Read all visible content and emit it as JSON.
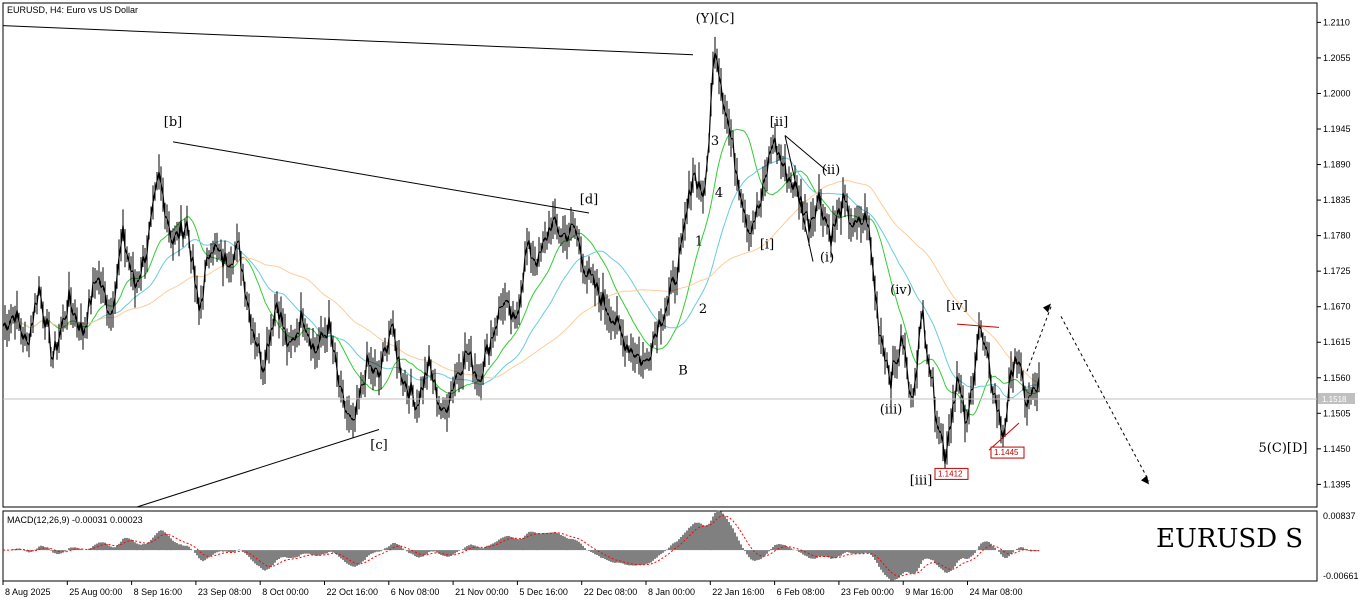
{
  "title": "EURUSD, H4:  Euro vs US Dollar",
  "macd_label": "MACD(12,26,9) -0.00031 0.00023",
  "watermark": "EURUSD S",
  "current_price": "1.1518",
  "colors": {
    "price": "#000000",
    "ma_green": "#33cc33",
    "ma_cyan": "#66ccdd",
    "ma_orange": "#ffcc99",
    "macd_hist": "#808080",
    "macd_signal": "#ff0000",
    "level_box": "#c00000"
  },
  "chart_data": [
    {
      "type": "line",
      "name_label": "EURUSD, H4",
      "y_ticks": [
        "1.2110",
        "1.2055",
        "1.2000",
        "1.1945",
        "1.1890",
        "1.1835",
        "1.1780",
        "1.1725",
        "1.1670",
        "1.1615",
        "1.1560",
        "1.1505",
        "1.1450",
        "1.1395"
      ],
      "x_ticks": [
        "8 Aug 2025",
        "25 Aug 00:00",
        "8 Sep 16:00",
        "23 Sep 08:00",
        "8 Oct 00:00",
        "22 Oct 16:00",
        "6 Nov 08:00",
        "21 Nov 00:00",
        "5 Dec 16:00",
        "22 Dec 08:00",
        "8 Jan 00:00",
        "22 Jan 16:00",
        "6 Feb 08:00",
        "23 Feb 00:00",
        "9 Mar 16:00",
        "24 Mar 08:00"
      ],
      "ylim": [
        1.136,
        1.214
      ],
      "price_keypoints": [
        [
          0,
          1.164
        ],
        [
          6,
          1.166
        ],
        [
          12,
          1.161
        ],
        [
          18,
          1.17
        ],
        [
          25,
          1.159
        ],
        [
          33,
          1.168
        ],
        [
          40,
          1.163
        ],
        [
          47,
          1.172
        ],
        [
          54,
          1.166
        ],
        [
          60,
          1.178
        ],
        [
          66,
          1.17
        ],
        [
          72,
          1.176
        ],
        [
          78,
          1.187
        ],
        [
          85,
          1.177
        ],
        [
          92,
          1.18
        ],
        [
          98,
          1.166
        ],
        [
          104,
          1.177
        ],
        [
          110,
          1.174
        ],
        [
          118,
          1.176
        ],
        [
          124,
          1.165
        ],
        [
          130,
          1.158
        ],
        [
          137,
          1.168
        ],
        [
          143,
          1.16
        ],
        [
          150,
          1.166
        ],
        [
          156,
          1.16
        ],
        [
          163,
          1.164
        ],
        [
          169,
          1.153
        ],
        [
          175,
          1.148
        ],
        [
          182,
          1.158
        ],
        [
          188,
          1.156
        ],
        [
          194,
          1.164
        ],
        [
          200,
          1.156
        ],
        [
          207,
          1.152
        ],
        [
          213,
          1.158
        ],
        [
          220,
          1.15
        ],
        [
          226,
          1.156
        ],
        [
          232,
          1.16
        ],
        [
          238,
          1.156
        ],
        [
          244,
          1.162
        ],
        [
          250,
          1.168
        ],
        [
          256,
          1.164
        ],
        [
          262,
          1.176
        ],
        [
          268,
          1.174
        ],
        [
          274,
          1.18
        ],
        [
          280,
          1.178
        ],
        [
          286,
          1.179
        ],
        [
          292,
          1.172
        ],
        [
          298,
          1.169
        ],
        [
          304,
          1.166
        ],
        [
          310,
          1.162
        ],
        [
          316,
          1.16
        ],
        [
          321,
          1.158
        ],
        [
          327,
          1.164
        ],
        [
          333,
          1.168
        ],
        [
          339,
          1.175
        ],
        [
          345,
          1.188
        ],
        [
          351,
          1.184
        ],
        [
          356,
          1.208
        ],
        [
          361,
          1.198
        ],
        [
          367,
          1.188
        ],
        [
          373,
          1.179
        ],
        [
          379,
          1.183
        ],
        [
          385,
          1.193
        ],
        [
          391,
          1.188
        ],
        [
          397,
          1.185
        ],
        [
          403,
          1.18
        ],
        [
          408,
          1.184
        ],
        [
          414,
          1.178
        ],
        [
          420,
          1.183
        ],
        [
          426,
          1.179
        ],
        [
          432,
          1.181
        ],
        [
          438,
          1.164
        ],
        [
          444,
          1.156
        ],
        [
          450,
          1.162
        ],
        [
          454,
          1.152
        ],
        [
          460,
          1.166
        ],
        [
          466,
          1.152
        ],
        [
          471,
          1.144
        ],
        [
          477,
          1.156
        ],
        [
          482,
          1.148
        ],
        [
          488,
          1.164
        ],
        [
          494,
          1.156
        ],
        [
          500,
          1.147
        ],
        [
          506,
          1.16
        ],
        [
          512,
          1.152
        ],
        [
          518,
          1.155
        ]
      ],
      "wave_labels": [
        {
          "text": "(Y)[C]",
          "x": 356,
          "y": 1.211
        },
        {
          "text": "[b]",
          "x": 85,
          "y": 1.195
        },
        {
          "text": "[d]",
          "x": 293,
          "y": 1.183
        },
        {
          "text": "[c]",
          "x": 188,
          "y": 1.145
        },
        {
          "text": "B",
          "x": 340,
          "y": 1.1565
        },
        {
          "text": "1",
          "x": 348,
          "y": 1.1765
        },
        {
          "text": "2",
          "x": 350,
          "y": 1.166
        },
        {
          "text": "3",
          "x": 356,
          "y": 1.192
        },
        {
          "text": "4",
          "x": 358,
          "y": 1.184
        },
        {
          "text": "[ii]",
          "x": 388,
          "y": 1.195
        },
        {
          "text": "[i]",
          "x": 382,
          "y": 1.176
        },
        {
          "text": "(ii)",
          "x": 414,
          "y": 1.1875
        },
        {
          "text": "(i)",
          "x": 412,
          "y": 1.174
        },
        {
          "text": "(iv)",
          "x": 449,
          "y": 1.169
        },
        {
          "text": "[iv]",
          "x": 477,
          "y": 1.1665
        },
        {
          "text": "(iii)",
          "x": 444,
          "y": 1.1505
        },
        {
          "text": "[iii]",
          "x": 459,
          "y": 1.1395
        },
        {
          "text": "5(C)[D]",
          "x": 640,
          "y": 1.1445
        }
      ],
      "price_tags": [
        "1.1412",
        "1.1445"
      ]
    },
    {
      "type": "bar",
      "name_label": "MACD(12,26,9)",
      "y_ticks": [
        "0.00837",
        "-0.00661"
      ],
      "ylim": [
        -0.00661,
        0.00837
      ]
    }
  ]
}
